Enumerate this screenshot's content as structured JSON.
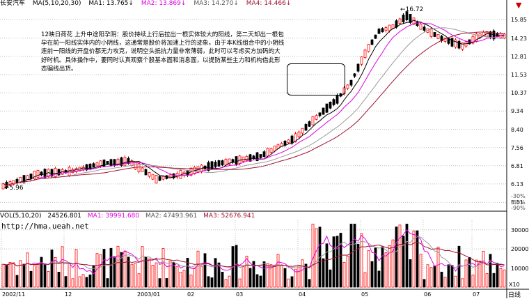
{
  "header": {
    "stock_name": "长安汽车",
    "ma_label": "MA(5,10,20,30)",
    "ma1": "MA1: 13.765",
    "ma2": "MA2: 13.869",
    "ma3": "MA3: 14.270",
    "ma4": "MA4: 14.466",
    "arrow_up": "↑",
    "arrow_down": "↓"
  },
  "volume_header": {
    "label": "VOL(5,10,20)",
    "vol": "24526.801",
    "ma1": "MA1: 39991.680",
    "ma2": "MA2: 47493.961",
    "ma3": "MA3: 52676.941"
  },
  "annotation": "12映日荷花 上升中途阳孕阴：股价持续上行后拉出一根实体较大的阳线，第二天却出一根包孕在前一阳线实体内的小阴线，这通常是股价将加速上行的迹象。由于本K线组合中的小阴线连前一阳线的开盘价都无力攻克，说明空头抵抗力量非常薄弱，此时可以考虑买方加码的大好时机。具体操作中，要同时认真观察个股基本面和消息面，以提防某些主力和机构借此形态骗线出货。",
  "watermark": "http://hma.ueah.net",
  "price_max_label": "16.72",
  "price_min_label": "5.96",
  "corner_icon": "red-marker",
  "day_label": "日线",
  "x10_label": "X10",
  "colors": {
    "up": "#ff0000",
    "down": "#000000",
    "ma5": "#000000",
    "ma10": "#e000e0",
    "ma20": "#9a9a9a",
    "ma30": "#a01030",
    "grid": "#c0c0c0",
    "highlight_box": "#000000"
  },
  "chart_data": [
    {
      "type": "candlestick",
      "title": "长安汽车",
      "y_tick_labels": [
        "15.85",
        "14.23",
        "12.81",
        "11.53",
        "10.37",
        "9.34",
        "8.40",
        "7.56",
        "6.81",
        "6.13",
        "5.51"
      ],
      "percent_tick_labels": [
        "-30%",
        "-60%",
        "-90%"
      ],
      "x_tick_labels": [
        "2002/11",
        "12",
        "2003/01",
        "02",
        "03",
        "04",
        "05",
        "06",
        "07"
      ],
      "price_high": 16.72,
      "price_low": 5.96,
      "moving_averages": [
        "MA1",
        "MA2",
        "MA3",
        "MA4"
      ]
    },
    {
      "type": "bar",
      "title": "VOL(5,10,20)",
      "y_tick_labels": [
        "30000",
        "20000",
        "10000"
      ],
      "x10_label": "X10",
      "series": [
        {
          "name": "VOL"
        },
        {
          "name": "MA1"
        },
        {
          "name": "MA2"
        },
        {
          "name": "MA3"
        }
      ]
    }
  ]
}
